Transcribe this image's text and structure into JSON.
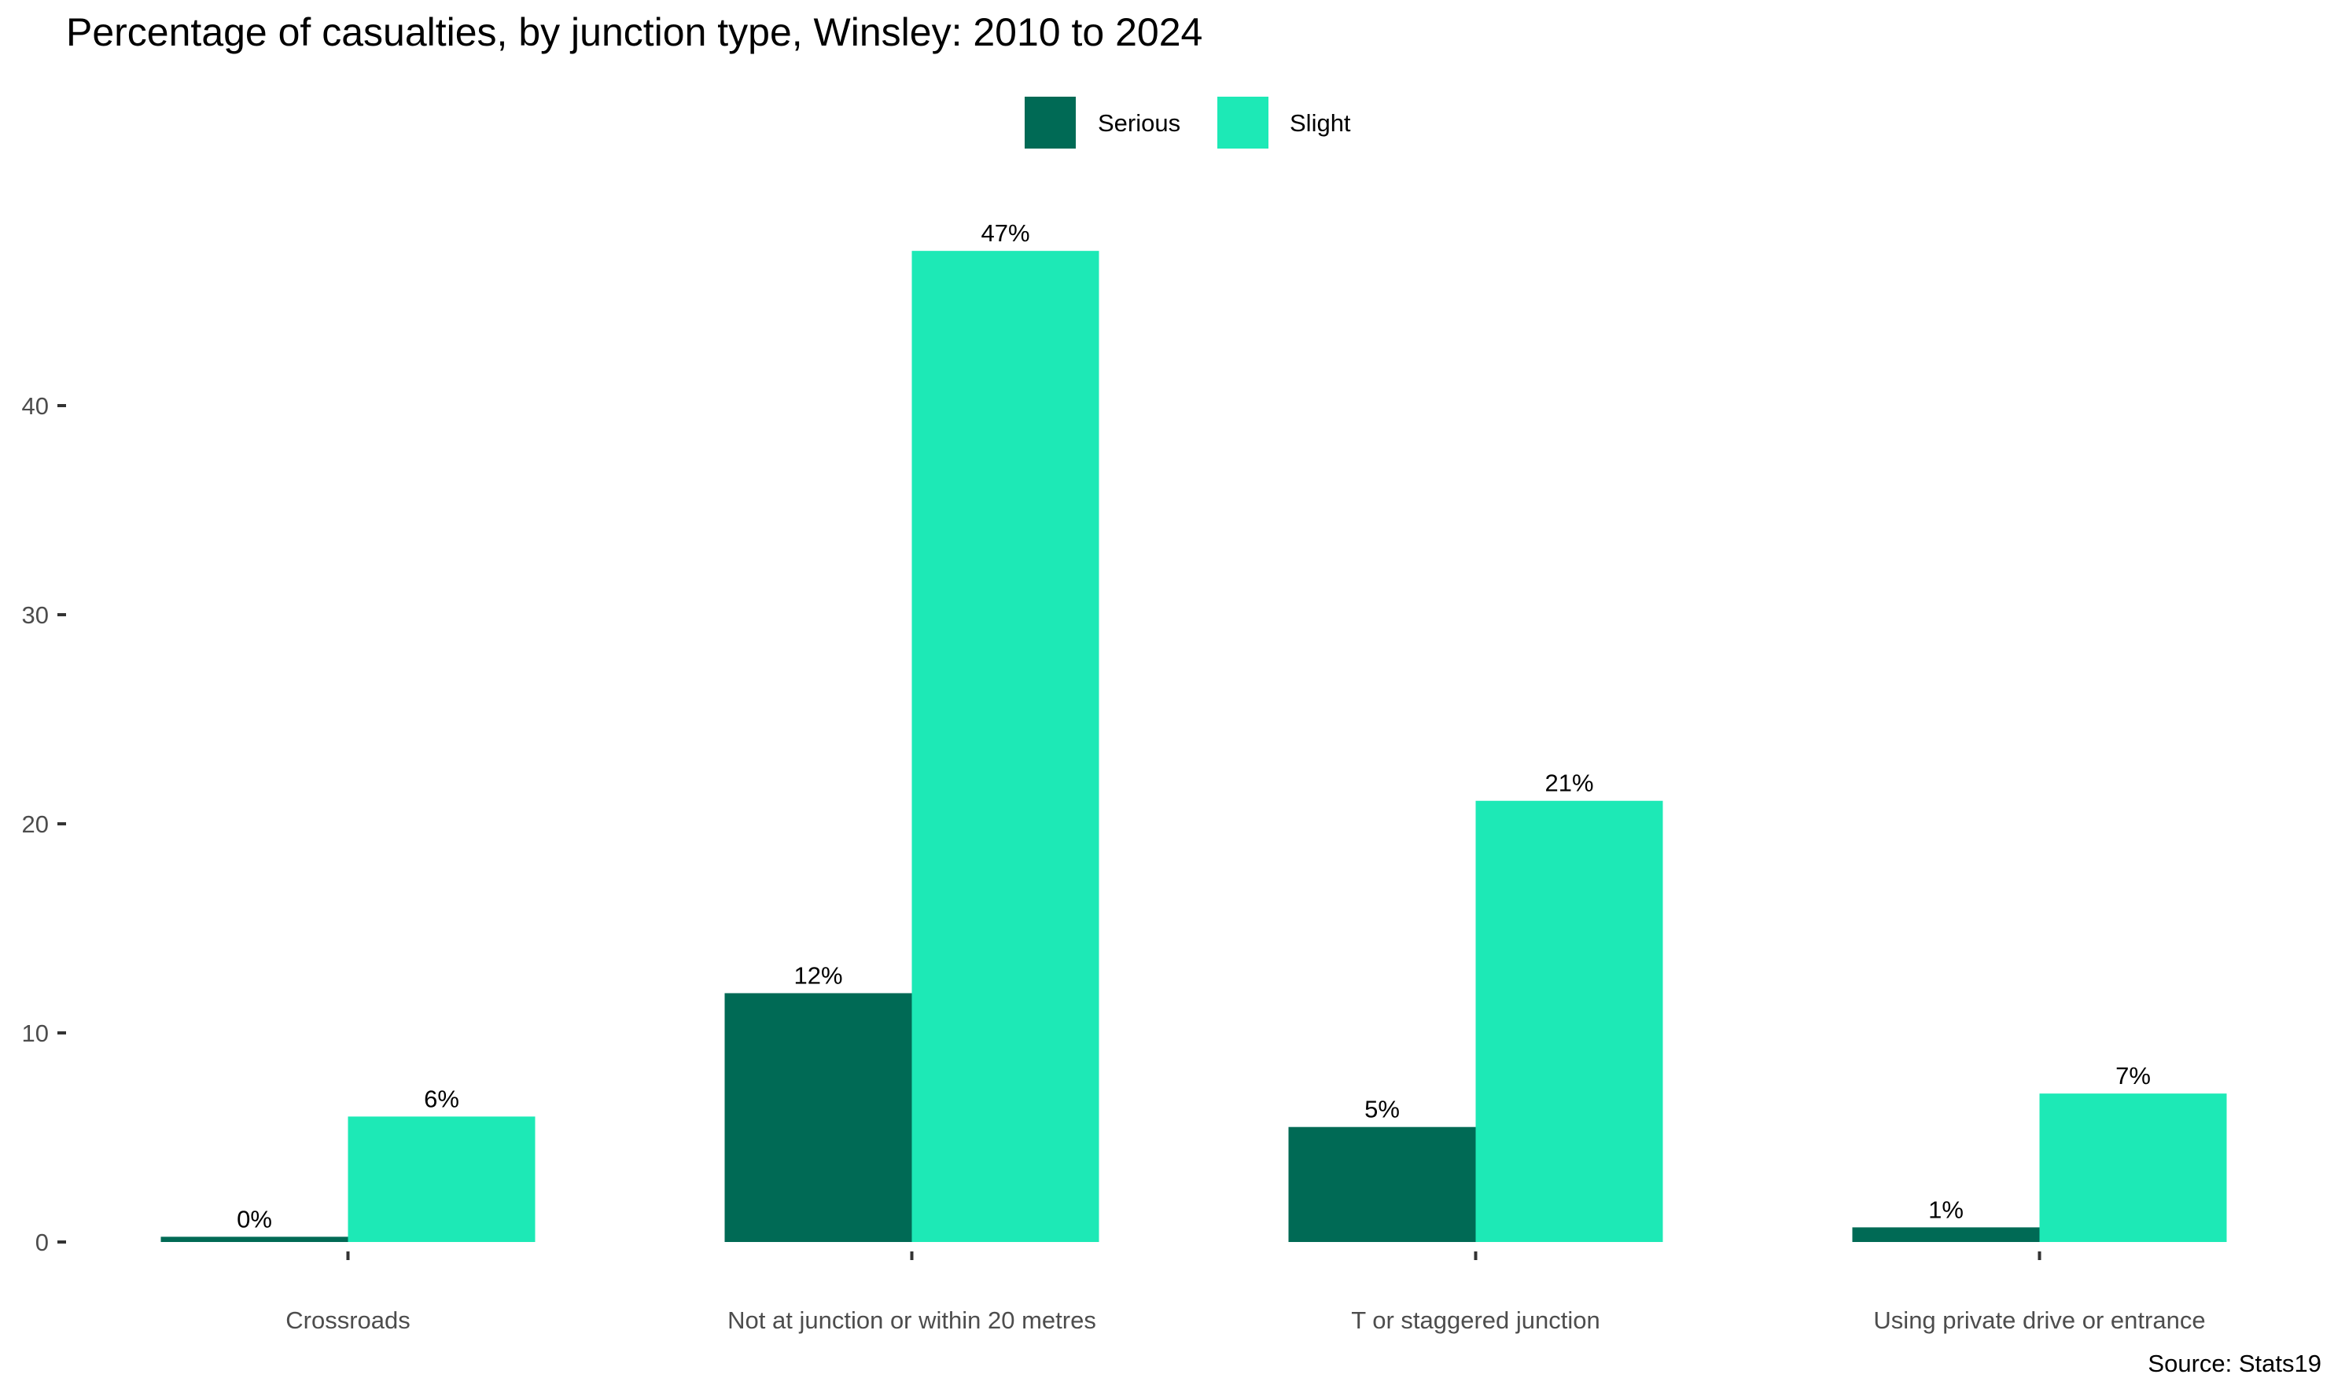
{
  "chart_data": {
    "type": "bar",
    "title": "Percentage of casualties, by junction type, Winsley: 2010 to 2024",
    "caption": "Source: Stats19",
    "xlabel": "",
    "ylabel": "",
    "categories": [
      "Crossroads",
      "Not at junction or within 20 metres",
      "T or staggered junction",
      "Using private drive or entrance"
    ],
    "series": [
      {
        "name": "Serious",
        "color": "#006a55",
        "values": [
          0.25,
          11.9,
          5.5,
          0.7
        ],
        "labels": [
          "0%",
          "12%",
          "5%",
          "1%"
        ]
      },
      {
        "name": "Slight",
        "color": "#1de9b6",
        "values": [
          6.0,
          47.4,
          21.1,
          7.1
        ],
        "labels": [
          "6%",
          "47%",
          "21%",
          "7%"
        ]
      }
    ],
    "y_ticks": [
      0,
      10,
      20,
      30,
      40
    ],
    "ylim": [
      0,
      49.5
    ],
    "grid": false,
    "legend_position": "top"
  }
}
